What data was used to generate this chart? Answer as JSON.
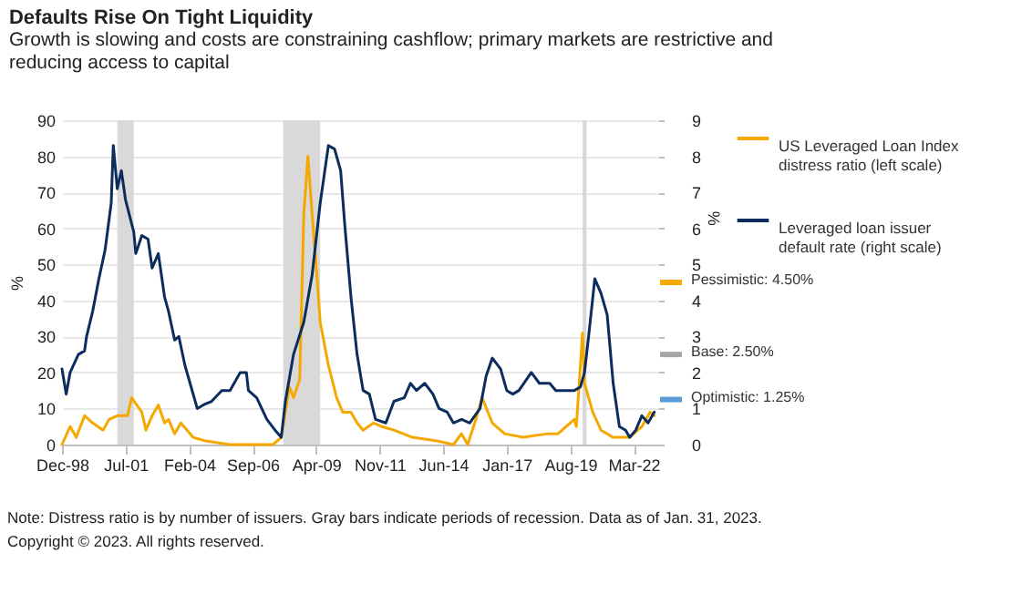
{
  "chart_data": {
    "type": "line",
    "title": "Defaults Rise On Tight Liquidity",
    "subtitle": "Growth is slowing and costs are constraining cashflow; primary markets are restrictive and reducing access to capital",
    "ylabel": "%",
    "y2label": "%",
    "xlim": [
      "1998-12",
      "2023-03"
    ],
    "xticks": [
      {
        "value": "1998-12",
        "label": "Dec-98"
      },
      {
        "value": "2001-07",
        "label": "Jul-01"
      },
      {
        "value": "2004-02",
        "label": "Feb-04"
      },
      {
        "value": "2006-09",
        "label": "Sep-06"
      },
      {
        "value": "2009-04",
        "label": "Apr-09"
      },
      {
        "value": "2011-11",
        "label": "Nov-11"
      },
      {
        "value": "2014-06",
        "label": "Jun-14"
      },
      {
        "value": "2017-01",
        "label": "Jan-17"
      },
      {
        "value": "2019-08",
        "label": "Aug-19"
      },
      {
        "value": "2022-03",
        "label": "Mar-22"
      }
    ],
    "ylim": [
      0,
      90
    ],
    "yticks": [
      0,
      10,
      20,
      30,
      40,
      50,
      60,
      70,
      80,
      90
    ],
    "y2lim": [
      0,
      9
    ],
    "y2ticks": [
      0,
      1,
      2,
      3,
      4,
      5,
      6,
      7,
      8,
      9
    ],
    "grid": "y",
    "legend": "top right",
    "series": [
      {
        "name": "US Leveraged Loan Index distress ratio (left scale)",
        "color": "#f5a800",
        "x": [
          "1998-12",
          "1999-04",
          "1999-07",
          "1999-11",
          "2000-03",
          "2000-08",
          "2000-11",
          "2001-03",
          "2001-08",
          "2001-10",
          "2002-03",
          "2002-05",
          "2002-08",
          "2002-11",
          "2003-02",
          "2003-04",
          "2003-07",
          "2003-10",
          "2004-04",
          "2004-10",
          "2005-10",
          "2006-10",
          "2007-07",
          "2007-11",
          "2008-03",
          "2008-05",
          "2008-08",
          "2008-10",
          "2008-12",
          "2009-02",
          "2009-04",
          "2009-06",
          "2009-10",
          "2010-02",
          "2010-05",
          "2010-09",
          "2010-12",
          "2011-03",
          "2011-08",
          "2011-12",
          "2012-06",
          "2013-03",
          "2014-03",
          "2014-11",
          "2015-03",
          "2015-06",
          "2015-10",
          "2016-01",
          "2016-06",
          "2016-12",
          "2017-09",
          "2018-09",
          "2019-02",
          "2019-10",
          "2019-11",
          "2020-02",
          "2020-03",
          "2020-07",
          "2020-11",
          "2021-05",
          "2022-01",
          "2022-07",
          "2022-11",
          "2023-01"
        ],
        "values": [
          0,
          5,
          2,
          8,
          6,
          4,
          7,
          8,
          8,
          13,
          9,
          4,
          8,
          11,
          6,
          7,
          3,
          6,
          2,
          1,
          0,
          0,
          0,
          2,
          16,
          13,
          18,
          64,
          80,
          64,
          50,
          34,
          22,
          13,
          9,
          9,
          6,
          4,
          6,
          5,
          4,
          2,
          1,
          0,
          3,
          0,
          7,
          13,
          6,
          3,
          2,
          3,
          3,
          7,
          5,
          31,
          17,
          9,
          4,
          2,
          2,
          5,
          9,
          8
        ]
      },
      {
        "name": "Leveraged loan issuer default rate (right scale)",
        "color": "#0c2c5e",
        "axis": "y2",
        "x": [
          "1998-12",
          "1999-02",
          "1999-04",
          "1999-08",
          "1999-11",
          "1999-12",
          "2000-03",
          "2000-06",
          "2000-09",
          "2000-12",
          "2001-01",
          "2001-03",
          "2001-05",
          "2001-07",
          "2001-11",
          "2001-12",
          "2002-03",
          "2002-06",
          "2002-08",
          "2002-11",
          "2003-02",
          "2003-04",
          "2003-07",
          "2003-09",
          "2003-12",
          "2004-06",
          "2004-09",
          "2005-01",
          "2005-06",
          "2005-10",
          "2006-03",
          "2006-06",
          "2006-07",
          "2006-11",
          "2007-04",
          "2007-08",
          "2007-11",
          "2008-01",
          "2008-05",
          "2008-10",
          "2009-02",
          "2009-06",
          "2009-10",
          "2010-01",
          "2010-04",
          "2010-06",
          "2010-09",
          "2010-12",
          "2011-03",
          "2011-06",
          "2011-09",
          "2012-02",
          "2012-06",
          "2012-11",
          "2013-02",
          "2013-05",
          "2013-09",
          "2014-01",
          "2014-04",
          "2014-08",
          "2014-11",
          "2015-03",
          "2015-07",
          "2015-12",
          "2016-03",
          "2016-06",
          "2016-10",
          "2017-01",
          "2017-04",
          "2017-07",
          "2018-01",
          "2018-05",
          "2018-10",
          "2019-01",
          "2019-05",
          "2019-10",
          "2020-01",
          "2020-03",
          "2020-05",
          "2020-08",
          "2020-11",
          "2021-02",
          "2021-05",
          "2021-08",
          "2021-11",
          "2022-01",
          "2022-04",
          "2022-07",
          "2022-10",
          "2023-01"
        ],
        "values": [
          2.1,
          1.4,
          2.0,
          2.5,
          2.6,
          3.0,
          3.7,
          4.6,
          5.4,
          6.7,
          8.3,
          7.1,
          7.6,
          6.8,
          5.9,
          5.3,
          5.8,
          5.7,
          4.9,
          5.3,
          4.1,
          3.7,
          2.9,
          3.0,
          2.2,
          1.0,
          1.1,
          1.2,
          1.5,
          1.5,
          2.0,
          2.0,
          1.5,
          1.3,
          0.7,
          0.4,
          0.2,
          1.2,
          2.5,
          3.4,
          4.7,
          6.7,
          8.3,
          8.2,
          7.6,
          6.1,
          4.1,
          2.5,
          1.5,
          1.4,
          0.7,
          0.6,
          1.2,
          1.3,
          1.7,
          1.5,
          1.7,
          1.4,
          1.0,
          0.9,
          0.6,
          0.7,
          0.6,
          1.0,
          1.9,
          2.4,
          2.1,
          1.5,
          1.4,
          1.5,
          2.0,
          1.7,
          1.7,
          1.5,
          1.5,
          1.5,
          1.6,
          2.0,
          3.0,
          4.6,
          4.2,
          3.6,
          1.7,
          0.5,
          0.4,
          0.2,
          0.4,
          0.8,
          0.6,
          0.9
        ]
      }
    ],
    "bands": [
      {
        "axis": "x",
        "from": "2001-03",
        "to": "2001-11",
        "color": "#d9d9d9"
      },
      {
        "axis": "x",
        "from": "2007-12",
        "to": "2009-06",
        "color": "#d9d9d9"
      },
      {
        "axis": "x",
        "from": "2020-02",
        "to": "2020-04",
        "color": "#d9d9d9"
      }
    ],
    "ref_lines": [
      {
        "axis": "y2",
        "value": 4.5,
        "label": "Pessimistic: 4.50%",
        "color": "#f5a800"
      },
      {
        "axis": "y2",
        "value": 2.5,
        "label": "Base: 2.50%",
        "color": "#a6a6a6"
      },
      {
        "axis": "y2",
        "value": 1.25,
        "label": "Optimistic: 1.25%",
        "color": "#5b9bd5"
      }
    ],
    "annotations": [
      "Note: Distress ratio is by number of issuers. Gray bars indicate periods of recession. Data as of Jan. 31, 2023.",
      "Copyright © 2023. All rights reserved."
    ]
  }
}
